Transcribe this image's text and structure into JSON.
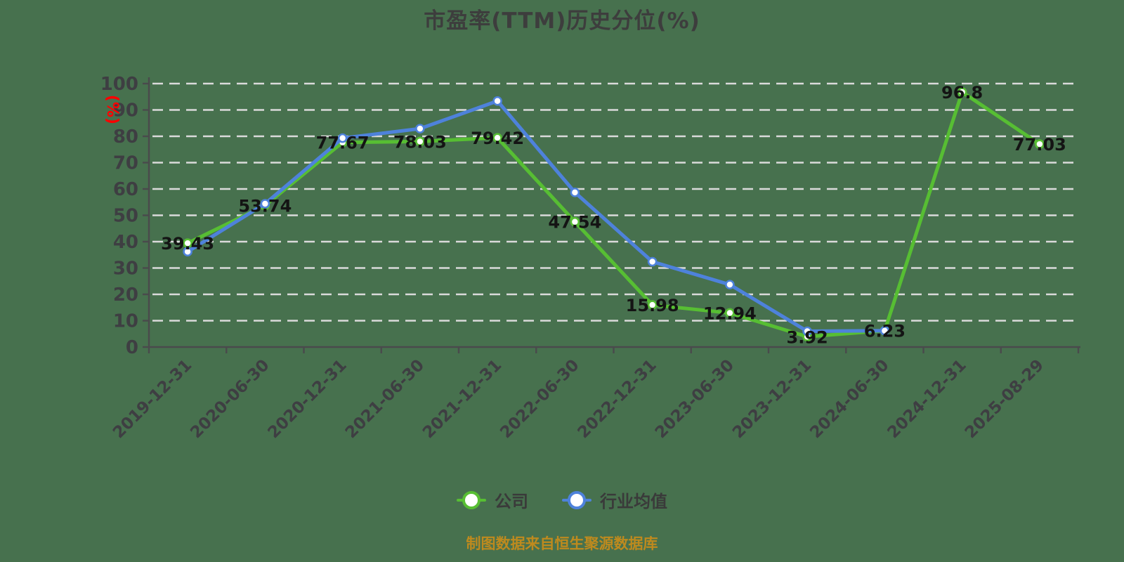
{
  "title": "市盈率(TTM)历史分位(%)",
  "footer_note": "制图数据来自恒生聚源数据库",
  "colors": {
    "background": "#47714E",
    "company_series": "#57BE33",
    "industry_series": "#4E82DB",
    "grid_line": "#DADADA",
    "axis_line": "#4A4A4C",
    "title_text": "#3D3D3D",
    "axis_text": "#3E3E42",
    "data_label_text": "#141414",
    "y_unit_text": "#FF0000",
    "footer_text": "#BE8A1E"
  },
  "chart_data": {
    "type": "line",
    "title": "市盈率(TTM)历史分位(%)",
    "categories": [
      "2019-12-31",
      "2020-06-30",
      "2020-12-31",
      "2021-06-30",
      "2021-12-31",
      "2022-06-30",
      "2022-12-31",
      "2023-06-30",
      "2023-12-31",
      "2024-06-30",
      "2024-12-31",
      "2025-08-29"
    ],
    "series": [
      {
        "name": "公司",
        "color": "#57BE33",
        "marker": "circle",
        "values": [
          39.43,
          53.74,
          77.67,
          78.03,
          79.42,
          47.54,
          15.98,
          12.94,
          3.92,
          6.23,
          96.8,
          77.03
        ],
        "point_labels": [
          "39.43",
          "53.74",
          "77.67",
          "78.03",
          "79.42",
          "47.54",
          "15.98",
          "12.94",
          "3.92",
          "6.23",
          "96.8",
          "77.03"
        ]
      },
      {
        "name": "行业均值",
        "color": "#4E82DB",
        "marker": "circle",
        "values": [
          36.2,
          54.4,
          79.3,
          82.9,
          93.4,
          58.7,
          32.4,
          23.7,
          6.0,
          6.2
        ],
        "estimated": true,
        "point_labels": []
      }
    ],
    "xlabel": "",
    "ylabel": "(%)",
    "ylim": [
      0,
      100
    ],
    "ytick_interval": 10,
    "grid": "horizontal-dashed",
    "legend_position": "bottom",
    "x_label_rotation_deg": 45
  }
}
